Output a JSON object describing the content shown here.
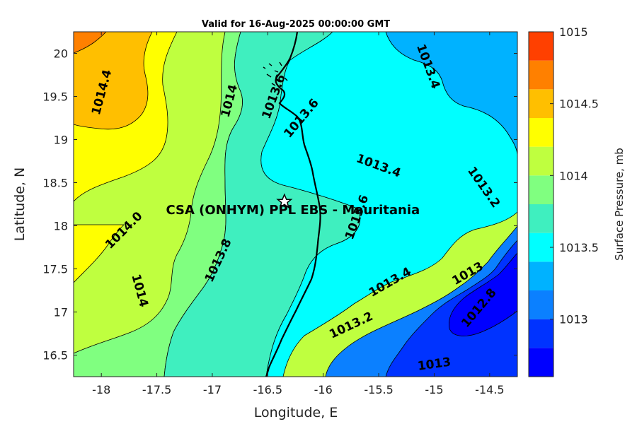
{
  "chart_data": {
    "type": "contour",
    "title": "Valid for 16-Aug-2025 00:00:00 GMT",
    "xlabel": "Longitude, E",
    "ylabel": "Latitude, N",
    "xlim": [
      -18.25,
      -14.25
    ],
    "ylim": [
      16.25,
      20.25
    ],
    "x_ticks": [
      -18,
      -17.5,
      -17,
      -16.5,
      -16,
      -15.5,
      -15,
      -14.5
    ],
    "x_tick_labels": [
      "-18",
      "-17.5",
      "-17",
      "-16.5",
      "-16",
      "-15.5",
      "-15",
      "-14.5"
    ],
    "y_ticks": [
      16.5,
      17,
      17.5,
      18,
      18.5,
      19,
      19.5,
      20
    ],
    "y_tick_labels": [
      "16.5",
      "17",
      "17.5",
      "18",
      "18.5",
      "19",
      "19.5",
      "20"
    ],
    "colorbar": {
      "label": "Surface Pressure, mb",
      "range": [
        1012.6,
        1015
      ],
      "ticks": [
        1013,
        1013.5,
        1014,
        1014.5,
        1015
      ],
      "tick_labels": [
        "1013",
        "1013.5",
        "1014",
        "1014.5",
        "1015"
      ],
      "levels": [
        {
          "min": 1012.6,
          "max": 1012.8,
          "color": "#0000ff"
        },
        {
          "min": 1012.8,
          "max": 1013.0,
          "color": "#0033ff"
        },
        {
          "min": 1013.0,
          "max": 1013.2,
          "color": "#0b80ff"
        },
        {
          "min": 1013.2,
          "max": 1013.4,
          "color": "#00b2ff"
        },
        {
          "min": 1013.4,
          "max": 1013.6,
          "color": "#00ffff"
        },
        {
          "min": 1013.6,
          "max": 1013.8,
          "color": "#3fefbf"
        },
        {
          "min": 1013.8,
          "max": 1014.0,
          "color": "#80ff80"
        },
        {
          "min": 1014.0,
          "max": 1014.2,
          "color": "#bfff3f"
        },
        {
          "min": 1014.2,
          "max": 1014.4,
          "color": "#ffff00"
        },
        {
          "min": 1014.4,
          "max": 1014.6,
          "color": "#ffbf00"
        },
        {
          "min": 1014.6,
          "max": 1014.8,
          "color": "#ff8000"
        },
        {
          "min": 1014.8,
          "max": 1015.0,
          "color": "#ff4000"
        },
        {
          "min": 1015.0,
          "max": 1015.2,
          "color": "#ff0000"
        }
      ]
    },
    "contour_labels": [
      {
        "text": "1014.4",
        "lon": -18.0,
        "lat": 19.55,
        "angle": -75
      },
      {
        "text": "1014",
        "lon": -16.85,
        "lat": 19.45,
        "angle": -75
      },
      {
        "text": "1014",
        "lon": -17.65,
        "lat": 17.25,
        "angle": 75
      },
      {
        "text": "1014.0",
        "lon": -17.8,
        "lat": 17.95,
        "angle": -45
      },
      {
        "text": "1013.8",
        "lon": -16.95,
        "lat": 17.6,
        "angle": -65
      },
      {
        "text": "1013.6",
        "lon": -16.45,
        "lat": 19.5,
        "angle": -70
      },
      {
        "text": "1013.6",
        "lon": -16.2,
        "lat": 19.25,
        "angle": -50
      },
      {
        "text": "1013.6",
        "lon": -15.7,
        "lat": 18.1,
        "angle": -70
      },
      {
        "text": "1013.4",
        "lon": -15.5,
        "lat": 18.7,
        "angle": 20
      },
      {
        "text": "1013.4",
        "lon": -15.05,
        "lat": 19.85,
        "angle": 70
      },
      {
        "text": "1013.4",
        "lon": -15.4,
        "lat": 17.35,
        "angle": -30
      },
      {
        "text": "1013.2",
        "lon": -14.55,
        "lat": 18.45,
        "angle": 55
      },
      {
        "text": "1013.2",
        "lon": -15.75,
        "lat": 16.85,
        "angle": -25
      },
      {
        "text": "1013",
        "lon": -14.7,
        "lat": 17.45,
        "angle": -30
      },
      {
        "text": "1013",
        "lon": -15.0,
        "lat": 16.4,
        "angle": -8
      },
      {
        "text": "1012.8",
        "lon": -14.6,
        "lat": 17.05,
        "angle": -50
      }
    ],
    "marker": {
      "lon": -16.35,
      "lat": 18.28,
      "symbol": "star"
    },
    "annotation": {
      "text": "CSA (ONHYM) PPL EBS  - Mauritania",
      "lon": -16.35,
      "lat": 18.15
    }
  }
}
